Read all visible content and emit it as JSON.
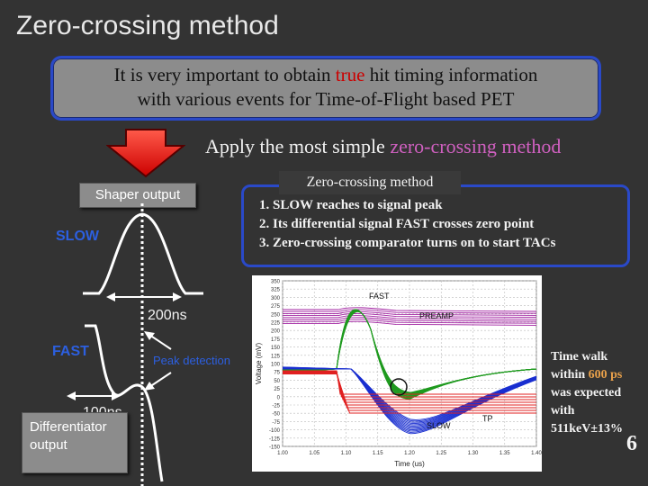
{
  "title": "Zero-crossing method",
  "importance": {
    "line1_pre": "It is very important to obtain ",
    "line1_highlight": "true",
    "line1_post": " hit timing information",
    "line2": "with various events for Time-of-Flight based PET"
  },
  "apply": {
    "prefix": "Apply the most simple ",
    "highlight": "zero-crossing method"
  },
  "diagram": {
    "shaper_output": "Shaper output",
    "slow": "SLOW",
    "width_slow": "200ns",
    "fast": "FAST",
    "peak_detection": "Peak detection",
    "width_fast": "100ns",
    "differentiator_line1": "Differentiator",
    "differentiator_line2": "output"
  },
  "zero_crossing": {
    "title": "Zero-crossing method",
    "steps": [
      "1. SLOW reaches to signal peak",
      "2. Its differential signal FAST crosses zero point",
      "3. Zero-crossing comparator turns on to start TACs"
    ]
  },
  "oscilloscope": {
    "ylabel": "Voltage (mV)",
    "xlabel": "Time (us)",
    "labels": {
      "fast": "FAST",
      "preamp": "PREAMP",
      "slow": "SLOW",
      "tp": "TP"
    },
    "y_ticks": [
      "350",
      "325",
      "300",
      "275",
      "250",
      "225",
      "200",
      "175",
      "150",
      "125",
      "100",
      "75",
      "50",
      "25",
      "0",
      "-25",
      "-50",
      "-75",
      "-100",
      "-125",
      "-150"
    ],
    "x_ticks": [
      "1.00",
      "1.05",
      "1.10",
      "1.15",
      "1.20",
      "1.25",
      "1.30",
      "1.35",
      "1.40"
    ],
    "colors": {
      "fast": "#1f9a1f",
      "preamp": "#a020a0",
      "slow": "#1a2fd0",
      "tp": "#e02020"
    }
  },
  "time_walk": {
    "line1": "Time walk",
    "line2_pre": "within ",
    "line2_highlight": "600 ps",
    "line3": "was expected",
    "line4": "with",
    "line5": "511keV±13%"
  },
  "page_number": "6"
}
